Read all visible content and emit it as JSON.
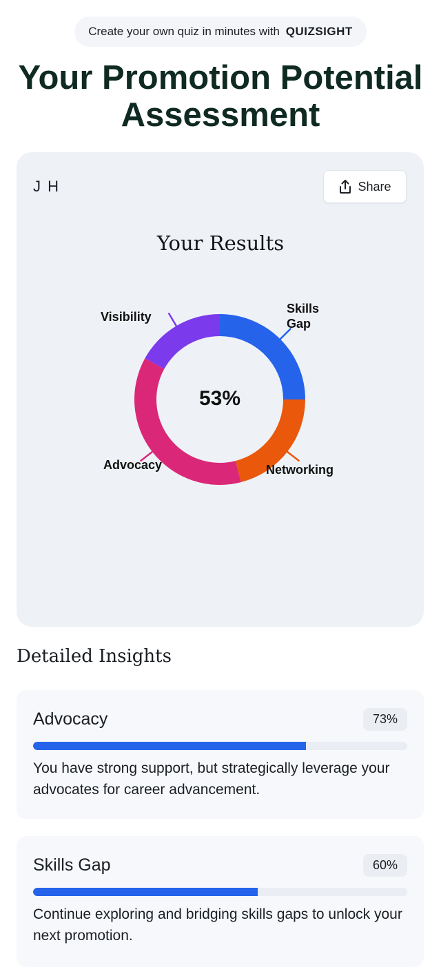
{
  "promo": {
    "text": "Create your own quiz in minutes with",
    "brand": "QUIZSIGHT"
  },
  "page_title": "Your Promotion Potential Assessment",
  "card": {
    "initials": "J H",
    "share_label": "Share",
    "share_icon": "share-upload-icon",
    "results_title": "Your Results"
  },
  "chart_data": {
    "type": "pie",
    "center_label": "53%",
    "segments": [
      {
        "label": "Skills Gap",
        "value": 25,
        "color": "#2563eb"
      },
      {
        "label": "Networking",
        "value": 21,
        "color": "#ea580c"
      },
      {
        "label": "Advocacy",
        "value": 37,
        "color": "#db2777"
      },
      {
        "label": "Visibility",
        "value": 17,
        "color": "#7c3aed"
      }
    ]
  },
  "insights": {
    "heading": "Detailed Insights",
    "items": [
      {
        "name": "Advocacy",
        "percent_label": "73%",
        "percent": 73,
        "description": "You have strong support, but strategically leverage your advocates for career advancement."
      },
      {
        "name": "Skills Gap",
        "percent_label": "60%",
        "percent": 60,
        "description": "Continue exploring and bridging skills gaps to unlock your next promotion."
      }
    ]
  }
}
